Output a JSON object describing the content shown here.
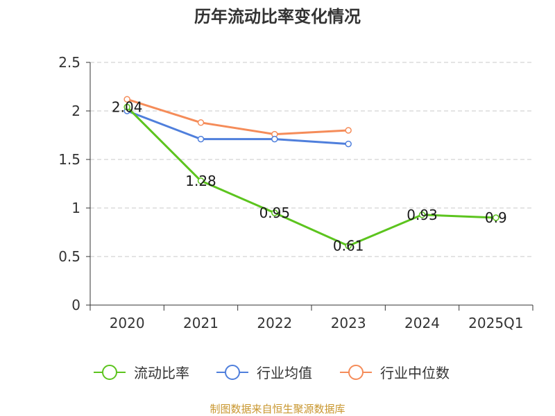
{
  "chart_data": {
    "type": "line",
    "title": "历年流动比率变化情况",
    "categories": [
      "2020",
      "2021",
      "2022",
      "2023",
      "2024",
      "2025Q1"
    ],
    "ylim": [
      0,
      2.5
    ],
    "yticks": [
      "0",
      "0.5",
      "1",
      "1.5",
      "2",
      "2.5"
    ],
    "ytick_values": [
      0,
      0.5,
      1,
      1.5,
      2,
      2.5
    ],
    "grid": true,
    "legend_position": "bottom",
    "series": [
      {
        "name": "流动比率",
        "color": "#5cc41e",
        "values": [
          2.04,
          1.28,
          0.95,
          0.61,
          0.93,
          0.9
        ],
        "labels": [
          "2.04",
          "1.28",
          "0.95",
          "0.61",
          "0.93",
          "0.9"
        ]
      },
      {
        "name": "行业均值",
        "color": "#4f7fdc",
        "values": [
          2.0,
          1.71,
          1.71,
          1.66,
          null,
          null
        ]
      },
      {
        "name": "行业中位数",
        "color": "#f58c59",
        "values": [
          2.12,
          1.88,
          1.76,
          1.8,
          null,
          null
        ]
      }
    ]
  },
  "source": "制图数据来自恒生聚源数据库"
}
